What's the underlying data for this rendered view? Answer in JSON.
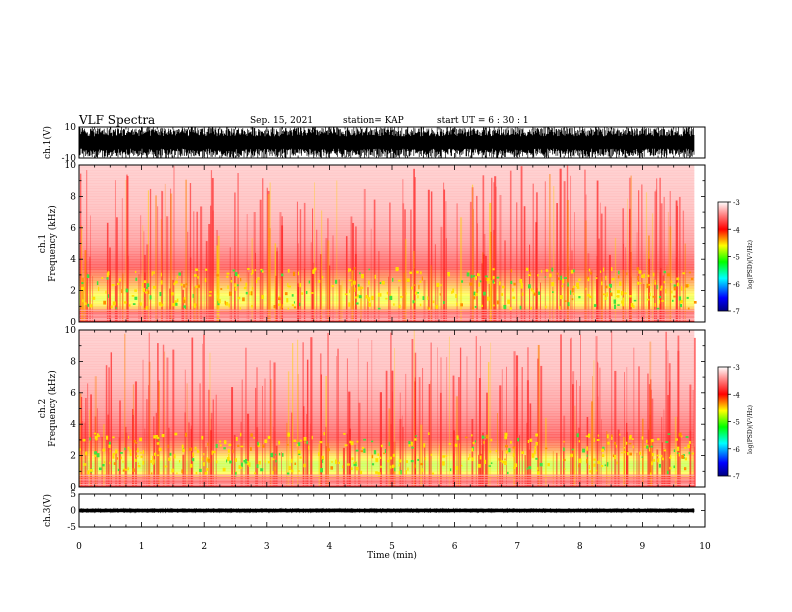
{
  "header": {
    "title": "VLF Spectra",
    "date": "Sep. 15, 2021",
    "station": "station= KAP",
    "start": "start UT =  6 : 30 : 1"
  },
  "chart_data": [
    {
      "type": "line",
      "panel": "ch1-waveform",
      "ylabel": "ch.1(V)",
      "yticks": [
        "10",
        "-10"
      ],
      "ylim": [
        -10,
        10
      ],
      "xlim": [
        0,
        10
      ],
      "x_data_end": 9.83,
      "description_values": "dense noise waveform filling roughly -10 to 10 V"
    },
    {
      "type": "heatmap",
      "panel": "ch1-spectrogram",
      "ylabel": "ch.1 Frequency (kHz)",
      "yticks": [
        "0",
        "2",
        "4",
        "6",
        "8",
        "10"
      ],
      "ylim": [
        0,
        10
      ],
      "xlim": [
        0,
        10
      ],
      "x_data_end": 9.83,
      "colorbar": {
        "label": "log(PSD)(V²/Hz)",
        "ticks": [
          "-3",
          "-4",
          "-5",
          "-6",
          "-7"
        ],
        "range": [
          -7,
          -3
        ]
      },
      "profile": [
        {
          "f": 0.3,
          "level": -3.6
        },
        {
          "f": 1.0,
          "level": -4.5
        },
        {
          "f": 1.5,
          "level": -4.7
        },
        {
          "f": 2.5,
          "level": -4.3
        },
        {
          "f": 3.5,
          "level": -4.0
        },
        {
          "f": 5.0,
          "level": -3.6
        },
        {
          "f": 7.0,
          "level": -3.4
        },
        {
          "f": 10.0,
          "level": -3.3
        }
      ]
    },
    {
      "type": "heatmap",
      "panel": "ch2-spectrogram",
      "ylabel": "ch.2 Frequency (kHz)",
      "yticks": [
        "0",
        "2",
        "4",
        "6",
        "8",
        "10"
      ],
      "ylim": [
        0,
        10
      ],
      "xlim": [
        0,
        10
      ],
      "x_data_end": 9.83,
      "colorbar": {
        "label": "log(PSD)(V²/Hz)",
        "ticks": [
          "-3",
          "-4",
          "-5",
          "-6",
          "-7"
        ],
        "range": [
          -7,
          -3
        ]
      },
      "profile": [
        {
          "f": 0.3,
          "level": -3.8
        },
        {
          "f": 1.0,
          "level": -4.7
        },
        {
          "f": 1.5,
          "level": -4.8
        },
        {
          "f": 2.5,
          "level": -4.2
        },
        {
          "f": 3.5,
          "level": -3.9
        },
        {
          "f": 5.0,
          "level": -3.6
        },
        {
          "f": 7.0,
          "level": -3.4
        },
        {
          "f": 10.0,
          "level": -3.3
        }
      ]
    },
    {
      "type": "line",
      "panel": "ch3-waveform",
      "ylabel": "ch.3(V)",
      "yticks": [
        "5",
        "0",
        "-5"
      ],
      "ylim": [
        -5,
        5
      ],
      "xlim": [
        0,
        10
      ],
      "x_data_end": 9.83,
      "description_values": "narrow band around 0 V (about -0.5 to 0.5)"
    }
  ],
  "xaxis": {
    "label": "Time (min)",
    "ticks": [
      "0",
      "1",
      "2",
      "3",
      "4",
      "5",
      "6",
      "7",
      "8",
      "9",
      "10"
    ]
  },
  "colors": {
    "background": "#ffffff",
    "axes": "#000000",
    "colormap": [
      "#000080",
      "#0000ff",
      "#00ffff",
      "#00ff00",
      "#ffff00",
      "#ff8000",
      "#ff0000",
      "#ffffff"
    ]
  }
}
